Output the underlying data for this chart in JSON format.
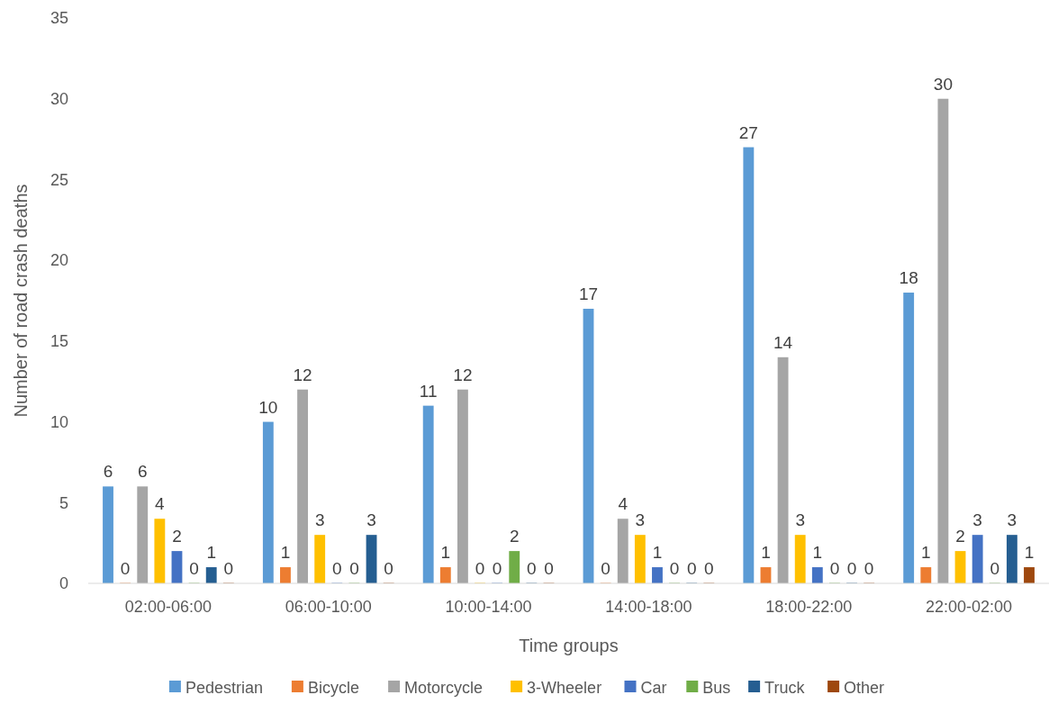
{
  "chart_data": {
    "type": "bar",
    "xlabel": "Time groups",
    "ylabel": "Number of road crash deaths",
    "categories": [
      "02:00-06:00",
      "06:00-10:00",
      "10:00-14:00",
      "14:00-18:00",
      "18:00-22:00",
      "22:00-02:00"
    ],
    "series": [
      {
        "name": "Pedestrian",
        "color": "#5b9bd5",
        "values": [
          6,
          10,
          11,
          17,
          27,
          18
        ]
      },
      {
        "name": "Bicycle",
        "color": "#ed7d31",
        "values": [
          0,
          1,
          1,
          0,
          1,
          1
        ]
      },
      {
        "name": "Motorcycle",
        "color": "#a5a5a5",
        "values": [
          6,
          12,
          12,
          4,
          14,
          30
        ]
      },
      {
        "name": "3-Wheeler",
        "color": "#ffc000",
        "values": [
          4,
          3,
          0,
          3,
          3,
          2
        ]
      },
      {
        "name": "Car",
        "color": "#4472c4",
        "values": [
          2,
          0,
          0,
          1,
          1,
          3
        ]
      },
      {
        "name": "Bus",
        "color": "#70ad47",
        "values": [
          0,
          0,
          2,
          0,
          0,
          0
        ]
      },
      {
        "name": "Truck",
        "color": "#255e91",
        "values": [
          1,
          3,
          0,
          0,
          0,
          3
        ]
      },
      {
        "name": "Other",
        "color": "#9e480e",
        "values": [
          0,
          0,
          0,
          0,
          0,
          1
        ]
      }
    ],
    "ylim": [
      0,
      35
    ],
    "yticks": [
      0,
      5,
      10,
      15,
      20,
      25,
      30,
      35
    ],
    "grid": false,
    "legend": "bottom",
    "data_labels": true
  }
}
